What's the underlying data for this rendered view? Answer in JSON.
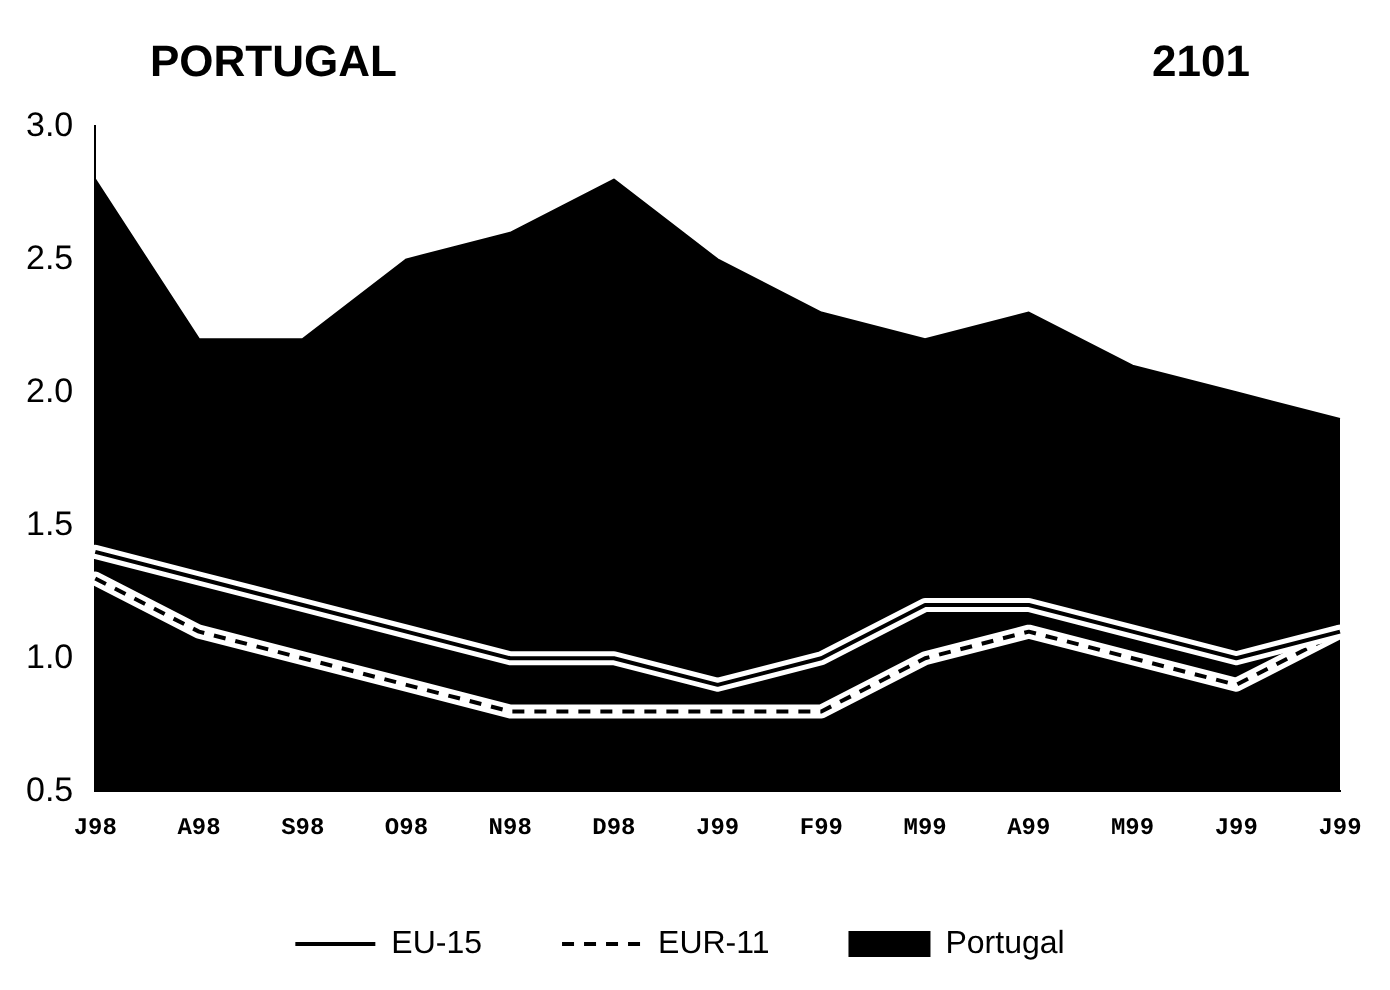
{
  "chart_data": {
    "type": "line",
    "title": "PORTUGAL",
    "subtitle": "2101",
    "categories": [
      "J98",
      "A98",
      "S98",
      "O98",
      "N98",
      "D98",
      "J99",
      "F99",
      "M99",
      "A99",
      "M99",
      "J99",
      "J99"
    ],
    "series": [
      {
        "name": "EU-15",
        "color": "#000000",
        "values": [
          1.4,
          1.3,
          1.2,
          1.1,
          1.0,
          1.0,
          0.9,
          1.0,
          1.2,
          1.2,
          1.1,
          1.0,
          1.1
        ]
      },
      {
        "name": "EUR-11",
        "color": "#000000",
        "line_style": "dashed",
        "values": [
          1.3,
          1.1,
          1.0,
          0.9,
          0.8,
          0.8,
          0.8,
          0.8,
          1.0,
          1.1,
          1.0,
          0.9,
          1.1
        ]
      },
      {
        "name": "Portugal",
        "type": "area",
        "color": "#000000",
        "values": [
          2.8,
          2.2,
          2.2,
          2.5,
          2.6,
          2.8,
          2.5,
          2.3,
          2.2,
          2.3,
          2.1,
          2.0,
          1.9
        ]
      }
    ],
    "ylim": [
      0.5,
      3.0
    ],
    "yticks": [
      {
        "value": 0.5,
        "label": "0.5"
      },
      {
        "value": 1,
        "label": "1.0"
      },
      {
        "value": 1.5,
        "label": "1.5"
      },
      {
        "value": 2,
        "label": "2.0"
      },
      {
        "value": 2.5,
        "label": "2.5"
      },
      {
        "value": 3,
        "label": "3.0"
      }
    ],
    "grid": false,
    "legend": "bottom",
    "marker": "none",
    "line_style": "solid"
  }
}
